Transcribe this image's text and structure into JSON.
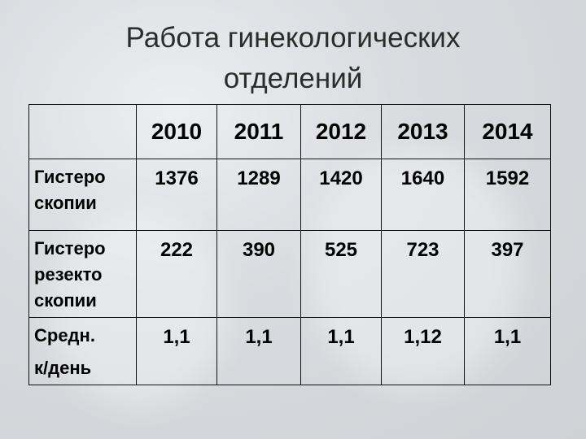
{
  "title_lines": [
    "Работа гинекологических",
    "отделений"
  ],
  "table": {
    "columns": [
      "2010",
      "2011",
      "2012",
      "2013",
      "2014"
    ],
    "rows": [
      {
        "label_lines": [
          "Гистеро",
          "скопии"
        ],
        "values": [
          "1376",
          "1289",
          "1420",
          "1640",
          "1592"
        ]
      },
      {
        "label_lines": [
          "Гистеро",
          "резекто",
          "скопии"
        ],
        "values": [
          "222",
          "390",
          "525",
          "723",
          "397"
        ]
      },
      {
        "label_lines": [
          "Средн.",
          "к/день"
        ],
        "values": [
          "1,1",
          "1,1",
          "1,1",
          "1,12",
          "1,1"
        ]
      }
    ]
  }
}
